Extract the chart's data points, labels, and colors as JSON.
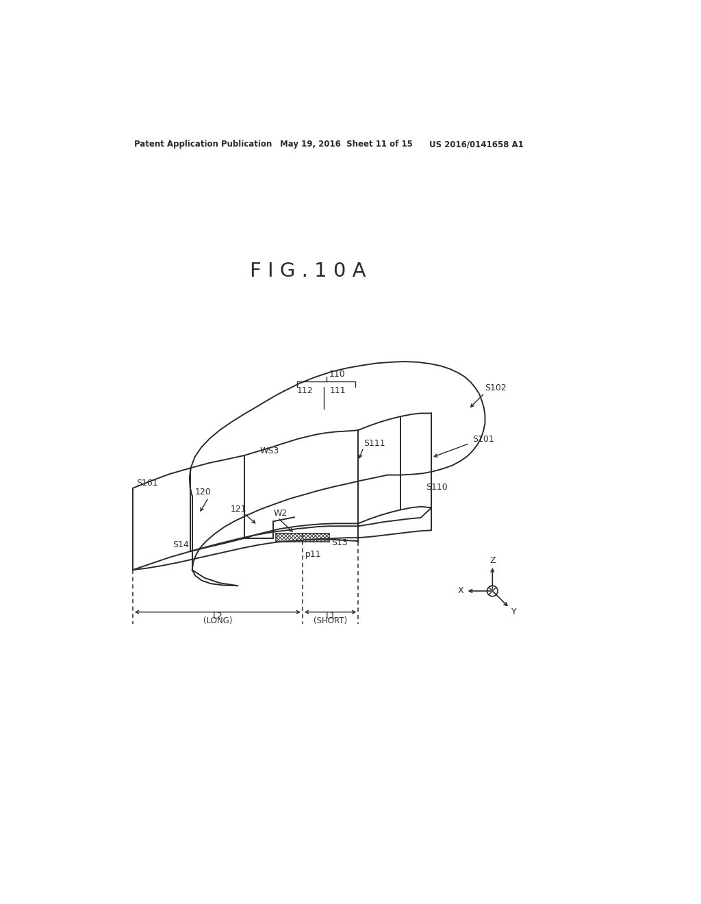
{
  "header_left": "Patent Application Publication",
  "header_mid": "May 19, 2016  Sheet 11 of 15",
  "header_right": "US 2016/0141658 A1",
  "title": "F I G . 1 0 A",
  "bg_color": "#ffffff",
  "line_color": "#2a2a2a"
}
